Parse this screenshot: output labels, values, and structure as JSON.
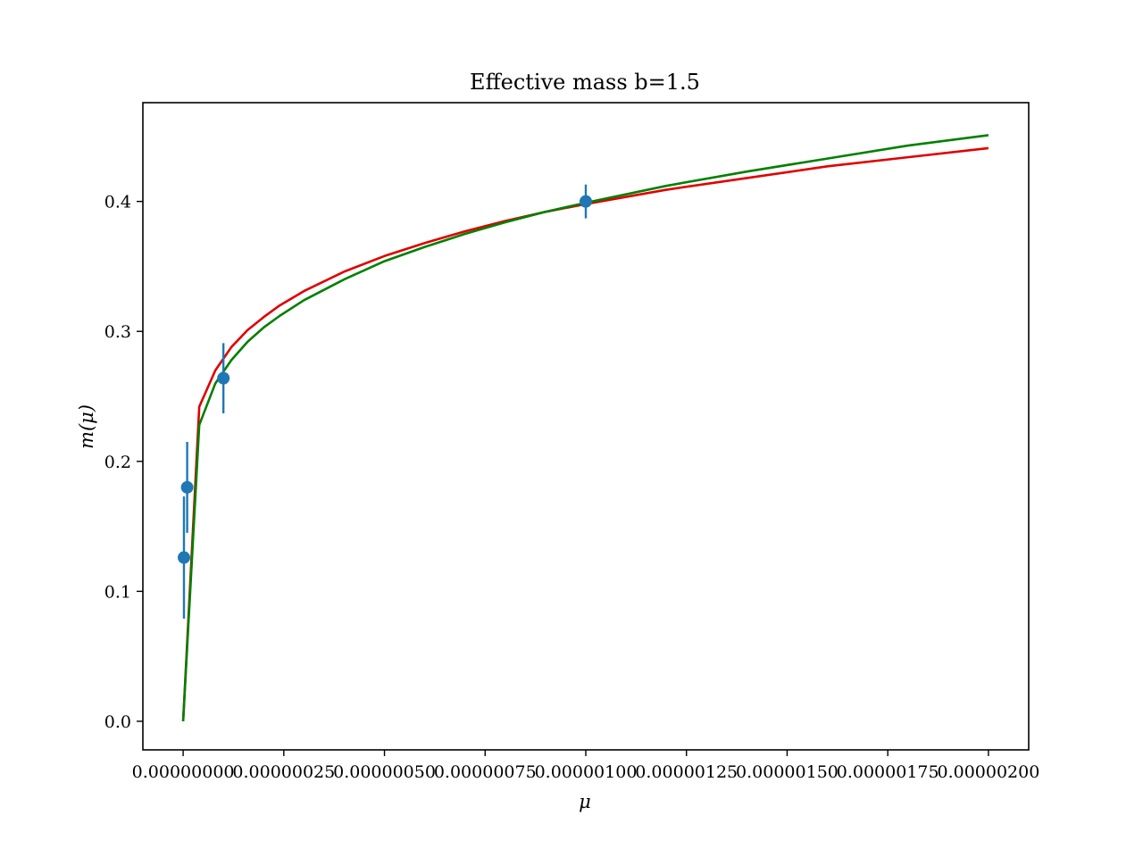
{
  "chart_data": {
    "type": "scatter",
    "title": "Effective mass b=1.5",
    "xlabel": "μ",
    "ylabel": "m(μ)",
    "xlim": [
      -1e-07,
      2.1e-06
    ],
    "ylim": [
      -0.022,
      0.476
    ],
    "xticks": [
      0,
      2.5e-07,
      5e-07,
      7.5e-07,
      1e-06,
      1.25e-06,
      1.5e-06,
      1.75e-06,
      2e-06
    ],
    "xtick_labels": [
      "0.00000000",
      "0.00000025",
      "0.00000050",
      "0.00000075",
      "0.00000100",
      "0.00000125",
      "0.00000150",
      "0.00000175",
      "0.00000200"
    ],
    "yticks": [
      0.0,
      0.1,
      0.2,
      0.3,
      0.4
    ],
    "ytick_labels": [
      "0.0",
      "0.1",
      "0.2",
      "0.3",
      "0.4"
    ],
    "grid": false,
    "series": [
      {
        "kind": "errorbar",
        "color": "#1f77b4",
        "points": [
          {
            "x": 2e-09,
            "y": 0.126,
            "err": 0.047
          },
          {
            "x": 1e-08,
            "y": 0.18,
            "err": 0.035
          },
          {
            "x": 1e-07,
            "y": 0.264,
            "err": 0.027
          },
          {
            "x": 1e-06,
            "y": 0.4,
            "err": 0.013
          }
        ]
      },
      {
        "kind": "line",
        "color": "#e00000",
        "x": [
          0,
          4e-08,
          8e-08,
          1.2e-07,
          1.6e-07,
          2e-07,
          2.4e-07,
          3e-07,
          4e-07,
          5e-07,
          6e-07,
          7e-07,
          8e-07,
          9e-07,
          1e-06,
          1.2e-06,
          1.4e-06,
          1.6e-06,
          1.8e-06,
          2e-06
        ],
        "y": [
          0,
          0.242,
          0.27,
          0.288,
          0.301,
          0.311,
          0.32,
          0.331,
          0.346,
          0.358,
          0.368,
          0.377,
          0.385,
          0.392,
          0.398,
          0.409,
          0.418,
          0.427,
          0.434,
          0.441
        ]
      },
      {
        "kind": "line",
        "color": "#008000",
        "x": [
          0,
          4e-08,
          8e-08,
          1.2e-07,
          1.6e-07,
          2e-07,
          2.4e-07,
          3e-07,
          4e-07,
          5e-07,
          6e-07,
          7e-07,
          8e-07,
          9e-07,
          1e-06,
          1.2e-06,
          1.4e-06,
          1.6e-06,
          1.8e-06,
          2e-06
        ],
        "y": [
          0,
          0.228,
          0.26,
          0.278,
          0.292,
          0.303,
          0.312,
          0.324,
          0.34,
          0.354,
          0.365,
          0.375,
          0.384,
          0.392,
          0.399,
          0.412,
          0.423,
          0.433,
          0.443,
          0.451
        ]
      }
    ]
  }
}
